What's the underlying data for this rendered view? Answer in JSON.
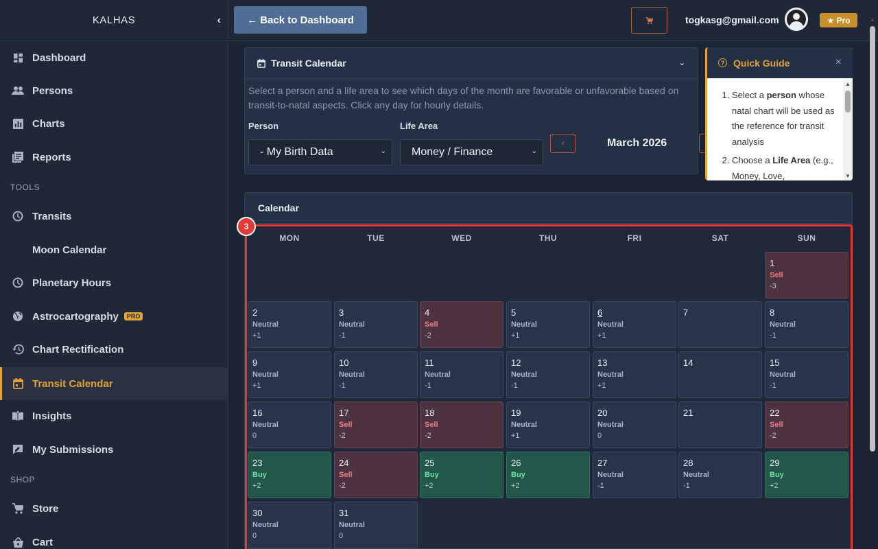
{
  "brand": "KALHAS",
  "sidebar": {
    "items": [
      {
        "label": "Dashboard",
        "icon": "dashboard-icon"
      },
      {
        "label": "Persons",
        "icon": "people-icon"
      },
      {
        "label": "Charts",
        "icon": "bar-chart-icon"
      },
      {
        "label": "Reports",
        "icon": "reports-icon"
      },
      {
        "label": "Transits",
        "icon": "clock-icon"
      },
      {
        "label": "Moon Calendar",
        "icon": "moon-icon"
      },
      {
        "label": "Planetary Hours",
        "icon": "clock-icon"
      },
      {
        "label": "Astrocartography",
        "icon": "globe-icon",
        "badge": "PRO"
      },
      {
        "label": "Chart Rectification",
        "icon": "history-icon"
      },
      {
        "label": "Transit Calendar",
        "icon": "calendar-icon",
        "active": true
      },
      {
        "label": "Insights",
        "icon": "book-icon"
      },
      {
        "label": "My Submissions",
        "icon": "feedback-icon"
      },
      {
        "label": "Store",
        "icon": "cart-icon"
      },
      {
        "label": "Cart",
        "icon": "basket-icon"
      }
    ],
    "sections": {
      "tools": "TOOLS",
      "shop": "SHOP"
    }
  },
  "topbar": {
    "back_label": "← Back to Dashboard",
    "email": "togkasg@gmail.com",
    "pro_label": "★ Pro"
  },
  "transit": {
    "title": "Transit Calendar",
    "description": "Select a person and a life area to see which days of the month are favorable or unfavorable based on transit-to-natal aspects. Click any day for hourly details.",
    "person_label": "Person",
    "person_value": "- My Birth Data",
    "area_label": "Life Area",
    "area_value": "Money / Finance",
    "month": "March 2026"
  },
  "guide": {
    "title": "Quick Guide",
    "step1_a": "Select a ",
    "step1_b": "person",
    "step1_c": " whose natal chart will be used as the reference for transit analysis",
    "step2_a": "Choose a ",
    "step2_b": "Life Area",
    "step2_c": " (e.g., Money, Love,"
  },
  "calendar": {
    "title": "Calendar",
    "marker": "3",
    "weekdays": [
      "MON",
      "TUE",
      "WED",
      "THU",
      "FRI",
      "SAT",
      "SUN"
    ],
    "days": [
      {
        "n": "1",
        "signal": "Sell",
        "score": "-3"
      },
      {
        "n": "2",
        "signal": "Neutral",
        "score": "+1"
      },
      {
        "n": "3",
        "signal": "Neutral",
        "score": "-1"
      },
      {
        "n": "4",
        "signal": "Sell",
        "score": "-2"
      },
      {
        "n": "5",
        "signal": "Neutral",
        "score": "+1"
      },
      {
        "n": "6",
        "signal": "Neutral",
        "score": "+1"
      },
      {
        "n": "7",
        "signal": "",
        "score": ""
      },
      {
        "n": "8",
        "signal": "Neutral",
        "score": "-1"
      },
      {
        "n": "9",
        "signal": "Neutral",
        "score": "+1"
      },
      {
        "n": "10",
        "signal": "Neutral",
        "score": "-1"
      },
      {
        "n": "11",
        "signal": "Neutral",
        "score": "-1"
      },
      {
        "n": "12",
        "signal": "Neutral",
        "score": "-1"
      },
      {
        "n": "13",
        "signal": "Neutral",
        "score": "+1"
      },
      {
        "n": "14",
        "signal": "",
        "score": ""
      },
      {
        "n": "15",
        "signal": "Neutral",
        "score": "-1"
      },
      {
        "n": "16",
        "signal": "Neutral",
        "score": "0"
      },
      {
        "n": "17",
        "signal": "Sell",
        "score": "-2"
      },
      {
        "n": "18",
        "signal": "Sell",
        "score": "-2"
      },
      {
        "n": "19",
        "signal": "Neutral",
        "score": "+1"
      },
      {
        "n": "20",
        "signal": "Neutral",
        "score": "0"
      },
      {
        "n": "21",
        "signal": "",
        "score": ""
      },
      {
        "n": "22",
        "signal": "Sell",
        "score": "-2"
      },
      {
        "n": "23",
        "signal": "Buy",
        "score": "+2"
      },
      {
        "n": "24",
        "signal": "Sell",
        "score": "-2"
      },
      {
        "n": "25",
        "signal": "Buy",
        "score": "+2"
      },
      {
        "n": "26",
        "signal": "Buy",
        "score": "+2"
      },
      {
        "n": "27",
        "signal": "Neutral",
        "score": "-1"
      },
      {
        "n": "28",
        "signal": "Neutral",
        "score": "-1"
      },
      {
        "n": "29",
        "signal": "Buy",
        "score": "+2"
      },
      {
        "n": "30",
        "signal": "Neutral",
        "score": "0"
      },
      {
        "n": "31",
        "signal": "Neutral",
        "score": "0"
      }
    ]
  }
}
